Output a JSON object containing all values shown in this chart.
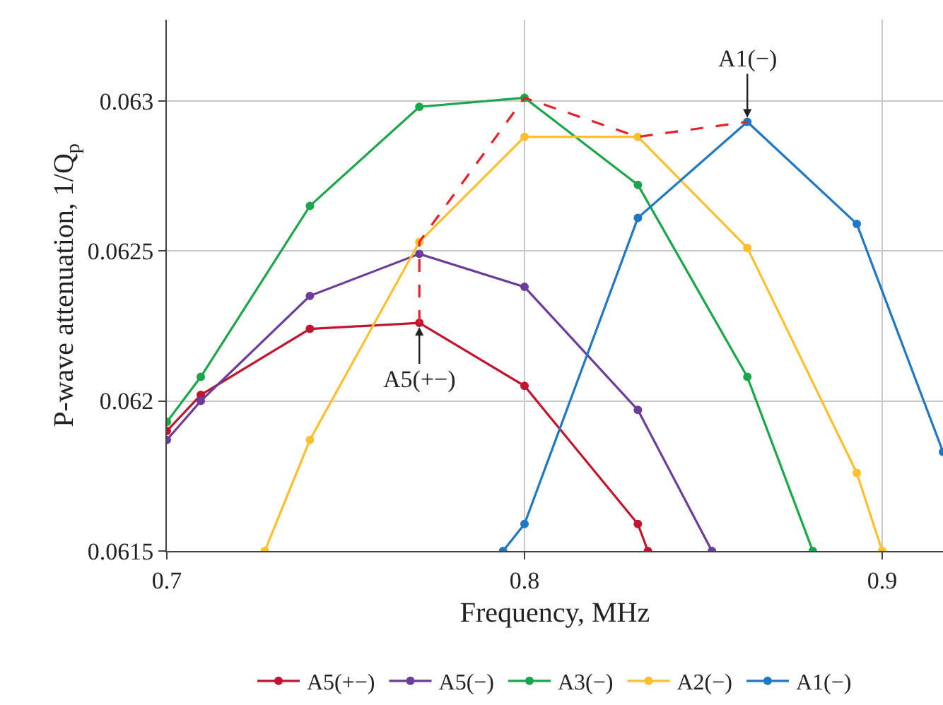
{
  "chart_data": {
    "type": "line",
    "xlabel": "Frequency, MHz",
    "ylabel": "P-wave attenuation, 1/Q$_{p}$",
    "xlim": [
      0.7,
      0.917
    ],
    "xticks": [
      0.7,
      0.8,
      0.9
    ],
    "ylim": [
      0.0615,
      0.06327
    ],
    "yticks": [
      0.0615,
      0.062,
      0.0625,
      0.063
    ],
    "grid": true,
    "legend": "bottom",
    "marker": "circle",
    "line_style": "solid",
    "series": [
      {
        "name": "A5(+−)",
        "color": "#c0152f",
        "x": [
          0.7,
          0.7095,
          0.74,
          0.7706,
          0.8,
          0.8317,
          0.8345
        ],
        "values": [
          0.0619,
          0.06202,
          0.06224,
          0.06226,
          0.06205,
          0.06159,
          0.0615
        ]
      },
      {
        "name": "A5(−)",
        "color": "#6a3d9a",
        "x": [
          0.7,
          0.7095,
          0.74,
          0.7706,
          0.8,
          0.8317,
          0.8524
        ],
        "values": [
          0.06187,
          0.062,
          0.06235,
          0.06249,
          0.06238,
          0.06197,
          0.0615
        ]
      },
      {
        "name": "A3(−)",
        "color": "#1aa64a",
        "x": [
          0.7,
          0.7095,
          0.74,
          0.7706,
          0.8,
          0.8317,
          0.8623,
          0.8806
        ],
        "values": [
          0.06193,
          0.06208,
          0.06265,
          0.06298,
          0.06301,
          0.06272,
          0.06208,
          0.0615
        ]
      },
      {
        "name": "A2(−)",
        "color": "#fdbf2d",
        "x": [
          0.7274,
          0.74,
          0.7706,
          0.8,
          0.8317,
          0.8623,
          0.8929,
          0.9
        ],
        "values": [
          0.0615,
          0.06187,
          0.06253,
          0.06288,
          0.06288,
          0.06251,
          0.06176,
          0.0615
        ]
      },
      {
        "name": "A1(−)",
        "color": "#1f78c1",
        "x": [
          0.794,
          0.8,
          0.8317,
          0.8623,
          0.8929,
          0.917
        ],
        "values": [
          0.0615,
          0.06159,
          0.06261,
          0.06293,
          0.06259,
          0.06183
        ]
      },
      {
        "color": "#e8202a",
        "line_style": "dashed",
        "marker": "none",
        "x": [
          0.7706,
          0.7706,
          0.8,
          0.8317,
          0.8623
        ],
        "values": [
          0.06226,
          0.06253,
          0.06301,
          0.06288,
          0.06293
        ]
      }
    ],
    "annotations": [
      {
        "text": "A1(−)",
        "x": 0.8623,
        "y": 0.06293
      },
      {
        "text": "A5(+−)",
        "x": 0.7706,
        "y": 0.06226
      }
    ]
  }
}
